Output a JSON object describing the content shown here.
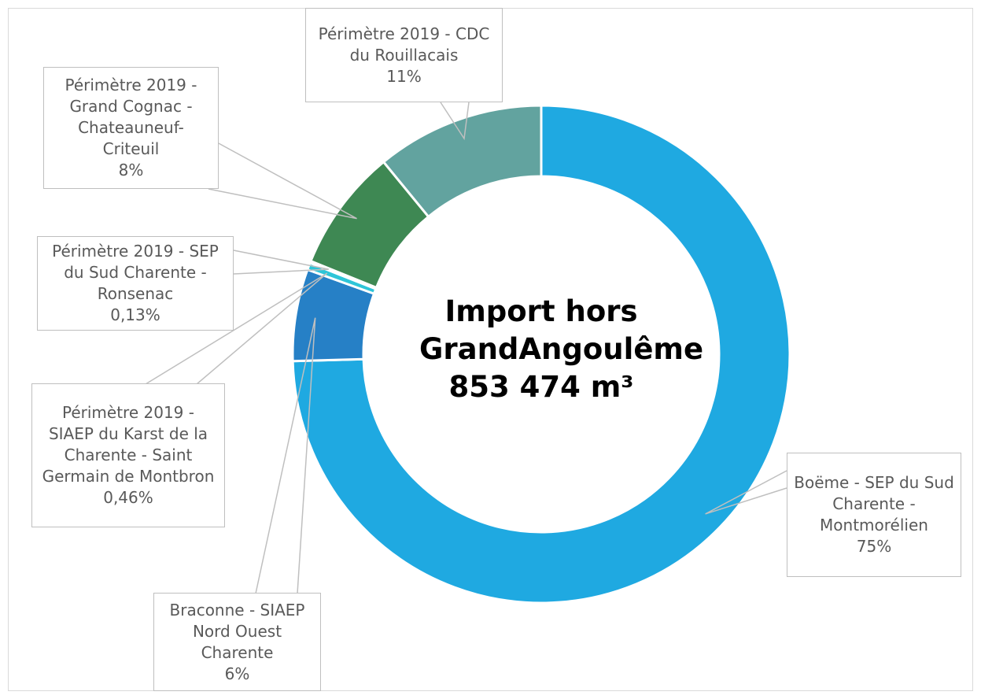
{
  "chart_data": {
    "type": "donut",
    "title": "Import hors GrandAngoulême 853 474 m³",
    "categories": [
      "Boëme - SEP du Sud Charente - Montmorélien",
      "Braconne - SIAEP Nord Ouest Charente",
      "Périmètre 2019 - SIAEP du Karst de la Charente - Saint Germain de Montbron",
      "Périmètre 2019 - SEP du Sud Charente - Ronsenac",
      "Périmètre 2019 - Grand Cognac - Chateauneuf-Criteuil",
      "Périmètre 2019 - CDC du Rouillacais"
    ],
    "values": [
      75,
      6,
      0.46,
      0.13,
      8,
      11
    ],
    "value_labels": [
      "75%",
      "6%",
      "0,46%",
      "0,13%",
      "8%",
      "11%"
    ],
    "colors": [
      "#1fa9e1",
      "#2680c6",
      "#2ec5d8",
      "#3cc9b2",
      "#3e8853",
      "#62a39f"
    ]
  }
}
